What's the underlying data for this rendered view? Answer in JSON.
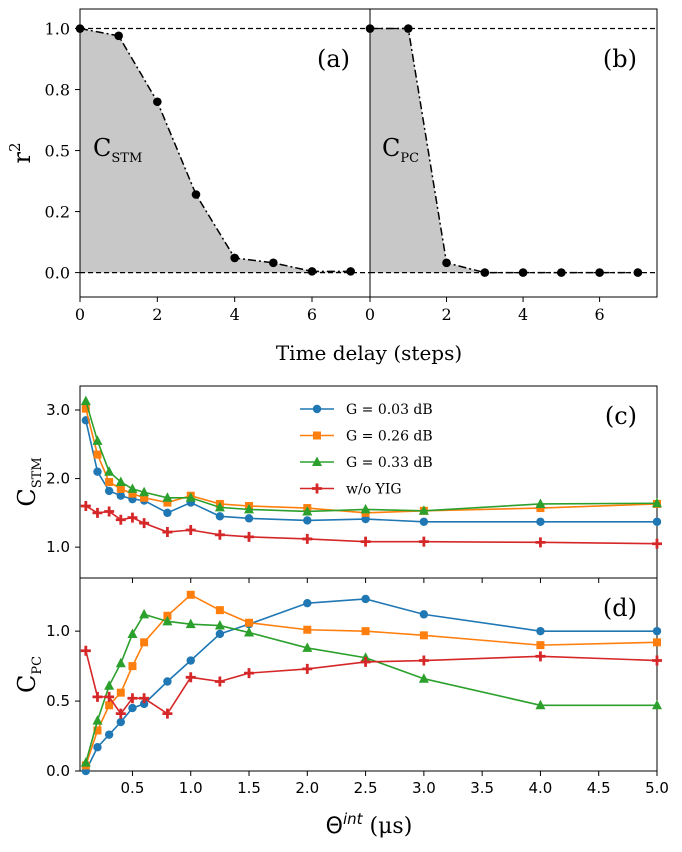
{
  "chart_data": [
    {
      "id": "a",
      "type": "line",
      "panel_label": "(a)",
      "annotation": {
        "main": "C",
        "sub": "STM"
      },
      "ylabel": "r",
      "ylabel_sup": "2",
      "xlabel": "Time delay (steps)",
      "xlim": [
        0,
        7.5
      ],
      "ylim": [
        -0.1,
        1.08
      ],
      "x_ticks": [
        0,
        2,
        4,
        6
      ],
      "y_ticks": [
        0.0,
        0.25,
        0.5,
        0.75,
        1.0
      ],
      "y_tick_labels": [
        "0.0",
        "0.2",
        "0.5",
        "0.8",
        "1.0"
      ],
      "reference_lines": [
        1.0,
        0.0
      ],
      "x": [
        0,
        1,
        2,
        3,
        4,
        5,
        6,
        7
      ],
      "values": [
        1.0,
        0.97,
        0.7,
        0.32,
        0.06,
        0.04,
        0.005,
        0.005
      ],
      "fill": "#c8c8c8"
    },
    {
      "id": "b",
      "type": "line",
      "panel_label": "(b)",
      "annotation": {
        "main": "C",
        "sub": "PC"
      },
      "xlim": [
        0,
        7.5
      ],
      "ylim": [
        -0.1,
        1.08
      ],
      "x_ticks": [
        0,
        2,
        4,
        6
      ],
      "x": [
        0,
        1,
        2,
        3,
        4,
        5,
        6,
        7
      ],
      "values": [
        1.0,
        1.0,
        0.04,
        0.0,
        0.0,
        0.0,
        0.0,
        0.0
      ],
      "fill": "#c8c8c8"
    },
    {
      "id": "c",
      "type": "line",
      "panel_label": "(c)",
      "ylabel": "C",
      "ylabel_sub": "STM",
      "xlim": [
        0.05,
        5.0
      ],
      "ylim": [
        0.55,
        3.35
      ],
      "y_ticks": [
        1.0,
        2.0,
        3.0
      ],
      "y_tick_labels": [
        "1.0",
        "2.0",
        "3.0"
      ],
      "x": [
        0.1,
        0.2,
        0.3,
        0.4,
        0.5,
        0.6,
        0.8,
        1.0,
        1.25,
        1.5,
        2.0,
        2.5,
        3.0,
        4.0,
        5.0
      ],
      "series": [
        {
          "name": "G = 0.03 dB",
          "color": "#1f77b4",
          "marker": "circle",
          "values": [
            2.85,
            2.1,
            1.82,
            1.75,
            1.7,
            1.68,
            1.5,
            1.65,
            1.45,
            1.42,
            1.39,
            1.41,
            1.37,
            1.37,
            1.37
          ]
        },
        {
          "name": "G = 0.26 dB",
          "color": "#ff7f0e",
          "marker": "square",
          "values": [
            3.02,
            2.35,
            1.95,
            1.85,
            1.78,
            1.72,
            1.65,
            1.75,
            1.63,
            1.6,
            1.57,
            1.5,
            1.53,
            1.57,
            1.63
          ]
        },
        {
          "name": "G = 0.33 dB",
          "color": "#2ca02c",
          "marker": "triangle",
          "values": [
            3.13,
            2.55,
            2.1,
            1.95,
            1.85,
            1.8,
            1.72,
            1.72,
            1.58,
            1.55,
            1.52,
            1.55,
            1.53,
            1.63,
            1.64
          ]
        },
        {
          "name": "w/o YIG",
          "color": "#d62728",
          "marker": "plus",
          "values": [
            1.6,
            1.5,
            1.52,
            1.4,
            1.43,
            1.35,
            1.22,
            1.25,
            1.18,
            1.15,
            1.12,
            1.08,
            1.08,
            1.07,
            1.05
          ]
        }
      ]
    },
    {
      "id": "d",
      "type": "line",
      "panel_label": "(d)",
      "ylabel": "C",
      "ylabel_sub": "PC",
      "xlabel": "Θ",
      "xlabel_sup": "int",
      "xlabel_unit": "(μs)",
      "xlim": [
        0.05,
        5.0
      ],
      "ylim": [
        0.0,
        1.38
      ],
      "y_ticks": [
        0.0,
        0.5,
        1.0
      ],
      "y_tick_labels": [
        "0.0",
        "0.5",
        "1.0"
      ],
      "x_ticks": [
        0.5,
        1.0,
        1.5,
        2.0,
        2.5,
        3.0,
        3.5,
        4.0,
        4.5,
        5.0
      ],
      "x_tick_labels": [
        "0.5",
        "1.0",
        "1.5",
        "2.0",
        "2.5",
        "3.0",
        "3.5",
        "4.0",
        "4.5",
        "5.0"
      ],
      "x": [
        0.1,
        0.2,
        0.3,
        0.4,
        0.5,
        0.6,
        0.8,
        1.0,
        1.25,
        1.5,
        2.0,
        2.5,
        3.0,
        4.0,
        5.0
      ],
      "series": [
        {
          "name": "G = 0.03 dB",
          "color": "#1f77b4",
          "marker": "circle",
          "values": [
            0.0,
            0.17,
            0.26,
            0.35,
            0.45,
            0.48,
            0.64,
            0.79,
            0.98,
            1.05,
            1.2,
            1.23,
            1.12,
            1.0,
            1.0
          ]
        },
        {
          "name": "G = 0.26 dB",
          "color": "#ff7f0e",
          "marker": "square",
          "values": [
            0.04,
            0.29,
            0.47,
            0.56,
            0.75,
            0.92,
            1.11,
            1.26,
            1.15,
            1.06,
            1.01,
            1.0,
            0.97,
            0.9,
            0.92
          ]
        },
        {
          "name": "G = 0.33 dB",
          "color": "#2ca02c",
          "marker": "triangle",
          "values": [
            0.06,
            0.36,
            0.61,
            0.77,
            0.98,
            1.12,
            1.07,
            1.05,
            1.04,
            0.99,
            0.88,
            0.81,
            0.66,
            0.47,
            0.47
          ]
        },
        {
          "name": "w/o YIG",
          "color": "#d62728",
          "marker": "plus",
          "values": [
            0.86,
            0.53,
            0.53,
            0.41,
            0.52,
            0.52,
            0.41,
            0.67,
            0.64,
            0.7,
            0.73,
            0.78,
            0.79,
            0.82,
            0.79
          ]
        }
      ]
    }
  ],
  "legend": [
    "G = 0.03 dB",
    "G = 0.26 dB",
    "G = 0.33 dB",
    "w/o YIG"
  ]
}
